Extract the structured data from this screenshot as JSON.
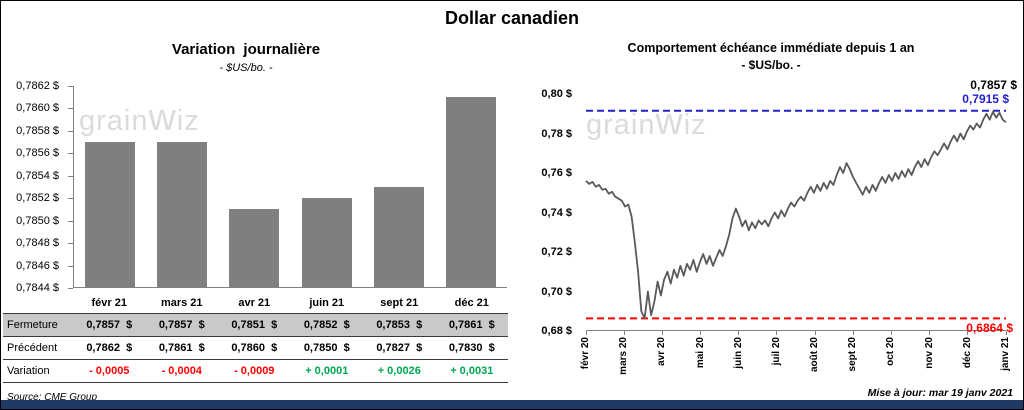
{
  "page": {
    "title": "Dollar canadien",
    "watermark_pre": "grain",
    "watermark_mid": "w",
    "watermark_post": "iz",
    "source": "Source: CME Group",
    "updated": "Mise à jour: mar 19 janv 2021",
    "footer_color": "#1F3864"
  },
  "table": {
    "rows": [
      {
        "label": "Fermeture",
        "shaded": true,
        "colored": false,
        "values": [
          "0,7857  $",
          "0,7857  $",
          "0,7851  $",
          "0,7852  $",
          "0,7853  $",
          "0,7861  $"
        ]
      },
      {
        "label": "Précédent",
        "shaded": false,
        "colored": false,
        "values": [
          "0,7862  $",
          "0,7861  $",
          "0,7860  $",
          "0,7850  $",
          "0,7827  $",
          "0,7830  $"
        ]
      },
      {
        "label": "Variation",
        "shaded": false,
        "colored": true,
        "values": [
          "- 0,0005",
          "- 0,0004",
          "- 0,0009",
          "+ 0,0001",
          "+ 0,0026",
          "+ 0,0031"
        ]
      }
    ],
    "negative_color": "#FF0000",
    "positive_color": "#00A651"
  },
  "chart_data": [
    {
      "type": "bar",
      "title": "Variation journalière",
      "subtitle": "- $US/bo. -",
      "categories": [
        "févr 21",
        "mars 21",
        "avr 21",
        "juin 21",
        "sept 21",
        "déc 21"
      ],
      "values": [
        0.7857,
        0.7857,
        0.7851,
        0.7852,
        0.7853,
        0.7861
      ],
      "ylim": [
        0.7844,
        0.7862
      ],
      "ytick_step": 0.0002,
      "ytick_labels": [
        "0,7862 $",
        "0,7860 $",
        "0,7858 $",
        "0,7856 $",
        "0,7854 $",
        "0,7852 $",
        "0,7850 $",
        "0,7848 $",
        "0,7846 $",
        "0,7844 $"
      ],
      "bar_color": "#7F7F7F",
      "unit": "$US/bo.",
      "legend": "off",
      "grid": "off"
    },
    {
      "type": "line",
      "title": "Comportement échéance immédiate depuis 1 an",
      "subtitle": "- $US/bo. -",
      "x_labels": [
        "févr 20",
        "mars 20",
        "avr 20",
        "mai 20",
        "juin 20",
        "juil 20",
        "août 20",
        "sept 20",
        "oct 20",
        "nov 20",
        "déc 20",
        "janv 21"
      ],
      "ylim": [
        0.68,
        0.8
      ],
      "ytick_step": 0.02,
      "ytick_labels": [
        "0,80 $",
        "0,78 $",
        "0,76 $",
        "0,74 $",
        "0,72 $",
        "0,70 $",
        "0,68 $"
      ],
      "line_color": "#595959",
      "high_line": {
        "value": 0.7915,
        "label": "0,7915 $",
        "color": "#2222CC"
      },
      "low_line": {
        "value": 0.6864,
        "label": "0,6864 $",
        "color": "#FF0000"
      },
      "last_value": 0.7857,
      "last_label": "0,7857 $",
      "unit": "$US/bo.",
      "legend": "off",
      "grid": "off",
      "values": [
        0.756,
        0.7545,
        0.7555,
        0.753,
        0.754,
        0.7515,
        0.752,
        0.7495,
        0.7505,
        0.748,
        0.747,
        0.746,
        0.743,
        0.744,
        0.738,
        0.725,
        0.71,
        0.69,
        0.6864,
        0.7,
        0.688,
        0.695,
        0.705,
        0.698,
        0.706,
        0.71,
        0.704,
        0.711,
        0.707,
        0.713,
        0.708,
        0.714,
        0.711,
        0.716,
        0.71,
        0.715,
        0.719,
        0.714,
        0.718,
        0.713,
        0.717,
        0.721,
        0.718,
        0.723,
        0.729,
        0.737,
        0.742,
        0.738,
        0.733,
        0.736,
        0.731,
        0.735,
        0.732,
        0.736,
        0.734,
        0.736,
        0.733,
        0.737,
        0.74,
        0.737,
        0.741,
        0.738,
        0.742,
        0.745,
        0.743,
        0.746,
        0.748,
        0.746,
        0.75,
        0.753,
        0.75,
        0.754,
        0.751,
        0.755,
        0.752,
        0.756,
        0.754,
        0.759,
        0.763,
        0.76,
        0.765,
        0.762,
        0.758,
        0.755,
        0.752,
        0.749,
        0.753,
        0.75,
        0.754,
        0.751,
        0.755,
        0.758,
        0.755,
        0.759,
        0.756,
        0.76,
        0.757,
        0.761,
        0.758,
        0.762,
        0.759,
        0.763,
        0.766,
        0.763,
        0.767,
        0.764,
        0.768,
        0.771,
        0.769,
        0.772,
        0.775,
        0.772,
        0.776,
        0.779,
        0.776,
        0.78,
        0.777,
        0.781,
        0.784,
        0.782,
        0.785,
        0.783,
        0.787,
        0.79,
        0.787,
        0.791,
        0.788,
        0.7905,
        0.787,
        0.7857
      ]
    }
  ]
}
